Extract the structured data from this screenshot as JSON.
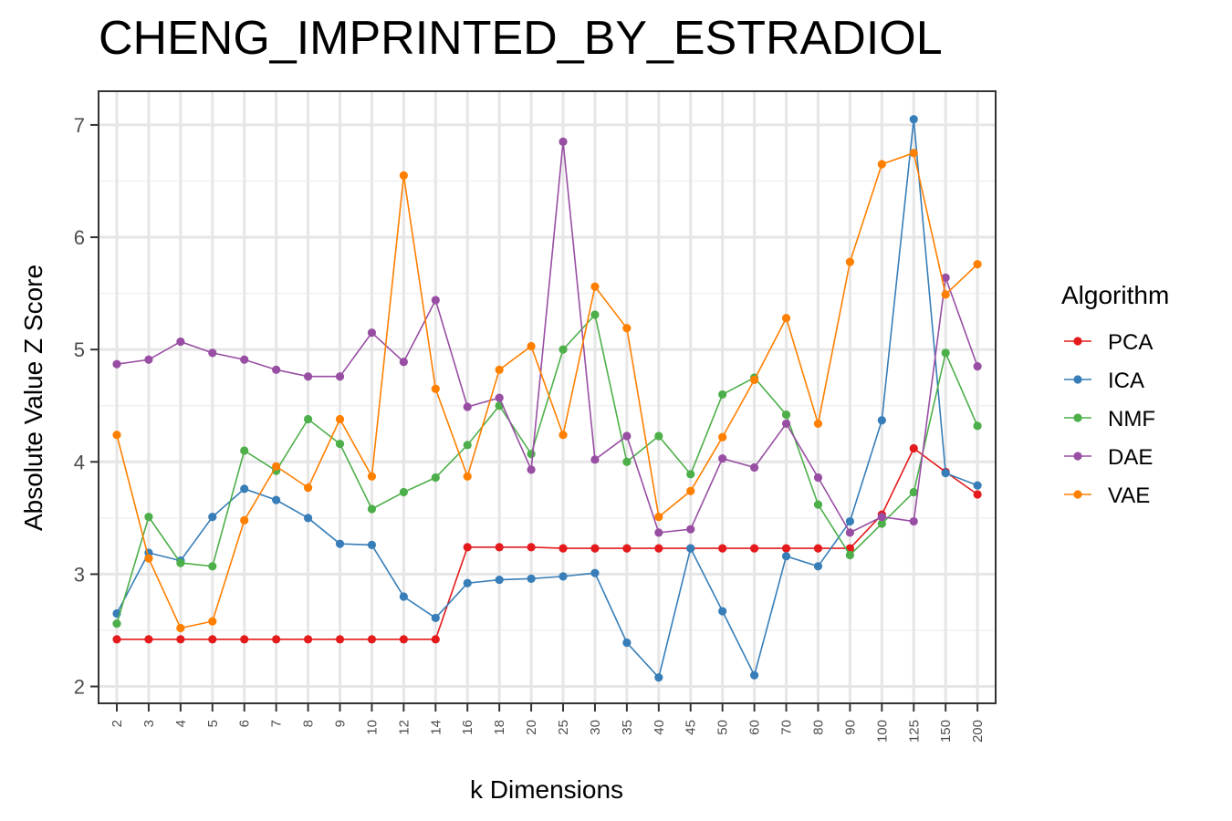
{
  "chart_data": {
    "type": "line",
    "title": "CHENG_IMPRINTED_BY_ESTRADIOL",
    "xlabel": "k Dimensions",
    "ylabel": "Absolute Value Z Score",
    "categories": [
      "2",
      "3",
      "4",
      "5",
      "6",
      "7",
      "8",
      "9",
      "10",
      "12",
      "14",
      "16",
      "18",
      "20",
      "25",
      "30",
      "35",
      "40",
      "45",
      "50",
      "60",
      "70",
      "80",
      "90",
      "100",
      "125",
      "150",
      "200"
    ],
    "ylim": [
      1.85,
      7.3
    ],
    "yticks": [
      2,
      3,
      4,
      5,
      6,
      7
    ],
    "grid": true,
    "legend": {
      "title": "Algorithm",
      "position": "right"
    },
    "series": [
      {
        "name": "PCA",
        "color": "#E41A1C",
        "values": [
          2.42,
          2.42,
          2.42,
          2.42,
          2.42,
          2.42,
          2.42,
          2.42,
          2.42,
          2.42,
          2.42,
          3.24,
          3.24,
          3.24,
          3.23,
          3.23,
          3.23,
          3.23,
          3.23,
          3.23,
          3.23,
          3.23,
          3.23,
          3.23,
          3.53,
          4.12,
          3.91,
          3.71
        ]
      },
      {
        "name": "ICA",
        "color": "#377EB8",
        "values": [
          2.65,
          3.19,
          3.12,
          3.51,
          3.76,
          3.66,
          3.5,
          3.27,
          3.26,
          2.8,
          2.61,
          2.92,
          2.95,
          2.96,
          2.98,
          3.01,
          2.39,
          2.08,
          3.23,
          2.67,
          2.1,
          3.16,
          3.07,
          3.47,
          4.37,
          7.05,
          3.9,
          3.79
        ]
      },
      {
        "name": "NMF",
        "color": "#4DAF4A",
        "values": [
          2.56,
          3.51,
          3.1,
          3.07,
          4.1,
          3.92,
          4.38,
          4.16,
          3.58,
          3.73,
          3.86,
          4.15,
          4.5,
          4.07,
          5.0,
          5.31,
          4.0,
          4.23,
          3.89,
          4.6,
          4.75,
          4.42,
          3.62,
          3.17,
          3.45,
          3.73,
          4.97,
          4.32
        ]
      },
      {
        "name": "DAE",
        "color": "#984EA3",
        "values": [
          4.87,
          4.91,
          5.07,
          4.97,
          4.91,
          4.82,
          4.76,
          4.76,
          5.15,
          4.89,
          5.44,
          4.49,
          4.57,
          3.93,
          6.85,
          4.02,
          4.23,
          3.37,
          3.4,
          4.03,
          3.95,
          4.34,
          3.86,
          3.37,
          3.51,
          3.47,
          5.64,
          4.85
        ]
      },
      {
        "name": "VAE",
        "color": "#FF7F00",
        "values": [
          4.24,
          3.14,
          2.52,
          2.58,
          3.48,
          3.96,
          3.77,
          4.38,
          3.87,
          6.55,
          4.65,
          3.87,
          4.82,
          5.03,
          4.24,
          5.56,
          5.19,
          3.51,
          3.74,
          4.22,
          4.73,
          5.28,
          4.34,
          5.78,
          6.65,
          6.75,
          5.49,
          5.76
        ]
      }
    ]
  }
}
